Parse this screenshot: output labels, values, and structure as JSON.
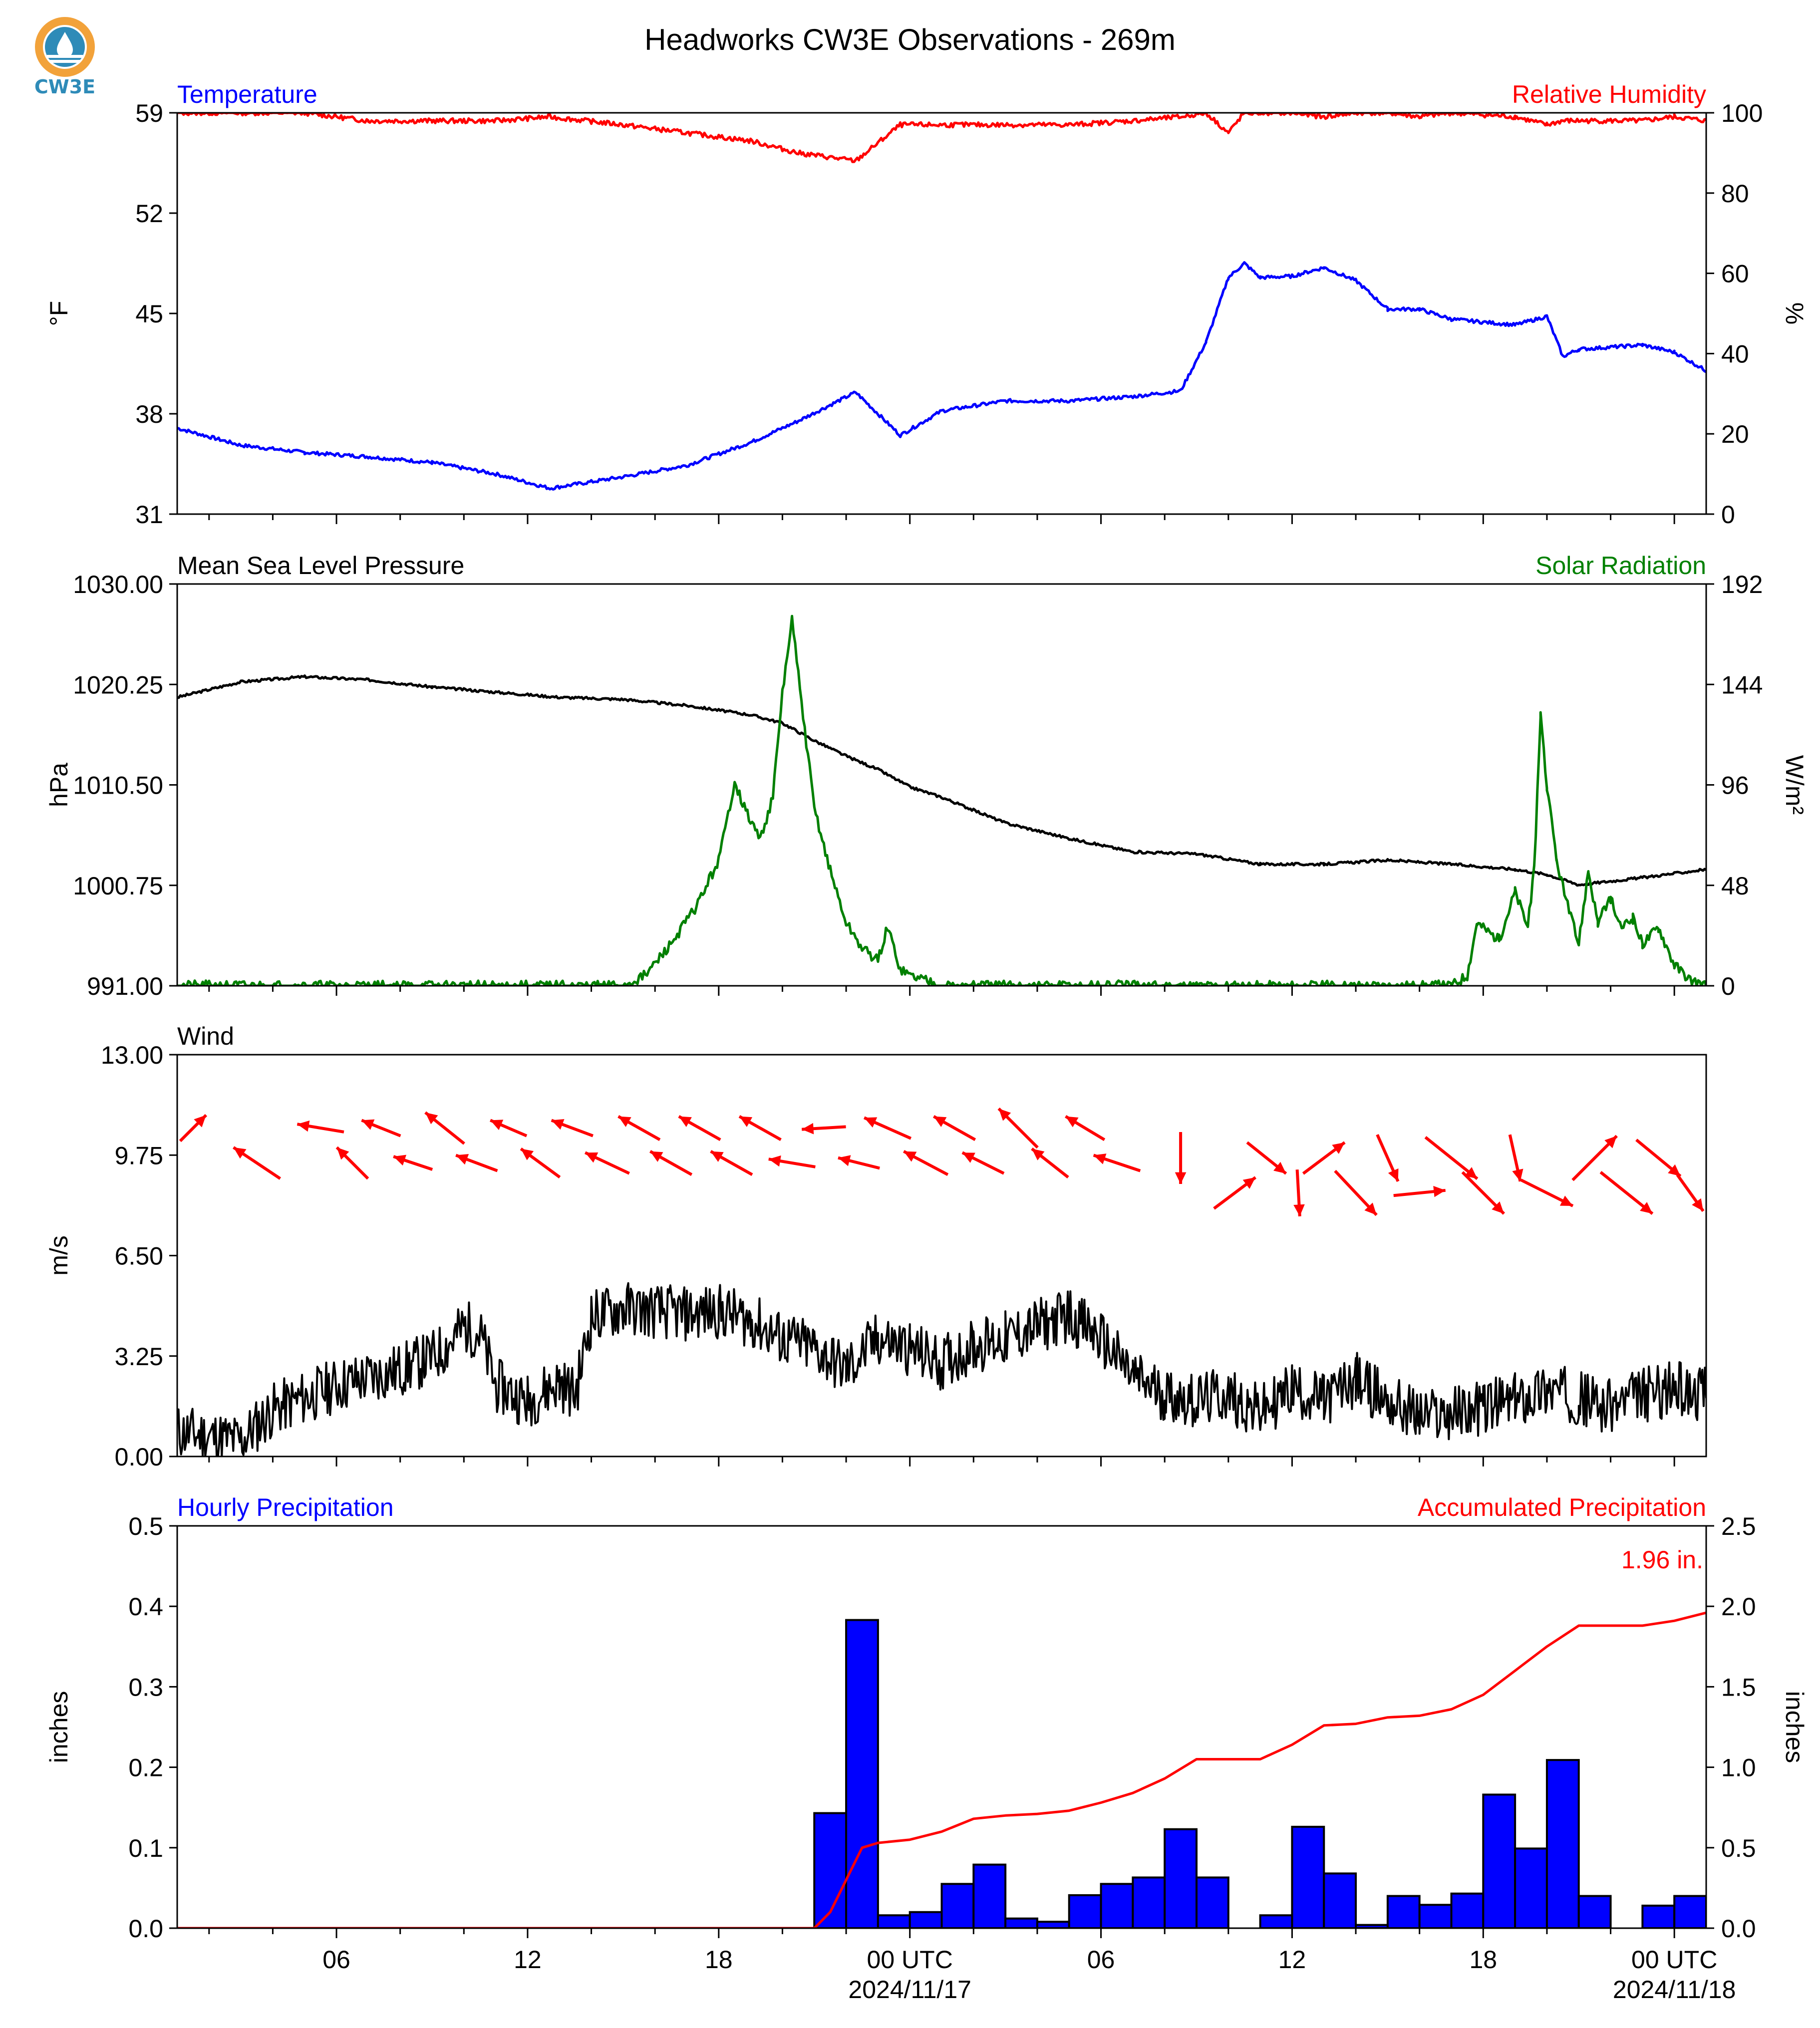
{
  "page_title": "Headworks CW3E Observations - 269m",
  "logo": {
    "text": "CW3E"
  },
  "colors": {
    "blue": "#0000ff",
    "red": "#ff0000",
    "green": "#008000",
    "black": "#000000"
  },
  "chart_data": [
    {
      "id": "temperature_rh",
      "type": "line",
      "title_left": "Temperature",
      "title_right": "Relative Humidity",
      "ylabel_left": "°F",
      "ylabel_right": "%",
      "ylim_left": [
        31,
        59
      ],
      "ylim_right": [
        0,
        100
      ],
      "yticks_left": [
        "31",
        "38",
        "45",
        "52",
        "59"
      ],
      "yticks_right": [
        "0",
        "20",
        "40",
        "60",
        "80",
        "100"
      ],
      "x_hours": [
        0,
        2,
        4,
        6,
        8,
        10,
        11.7,
        14,
        16,
        18,
        19.5,
        21.3,
        22.7,
        24,
        26,
        28,
        30,
        31.5,
        32.3,
        33,
        33.5,
        34,
        35,
        36,
        37,
        38,
        39,
        40,
        42,
        43,
        43.5,
        44,
        46,
        47,
        48
      ],
      "series": [
        {
          "name": "Temperature",
          "axis": "left",
          "color": "#0000ff",
          "values": [
            37.0,
            35.8,
            35.3,
            35.0,
            34.6,
            33.8,
            32.8,
            33.6,
            34.4,
            36.0,
            37.5,
            39.5,
            36.5,
            38.2,
            38.9,
            38.9,
            39.2,
            39.6,
            43.0,
            47.5,
            48.5,
            47.5,
            47.6,
            48.2,
            47.3,
            45.3,
            45.3,
            44.6,
            44.2,
            44.8,
            42.0,
            42.5,
            42.8,
            42.3,
            41.0
          ]
        },
        {
          "name": "Relative Humidity",
          "axis": "right",
          "color": "#ff0000",
          "values": [
            100,
            100,
            100,
            98,
            98,
            98,
            99,
            97,
            95,
            93,
            90,
            88,
            97,
            97,
            97,
            97,
            98,
            99,
            100,
            95,
            100,
            100,
            100,
            99,
            100,
            100,
            99,
            100,
            99,
            97,
            98,
            98,
            98,
            99,
            98
          ]
        }
      ]
    },
    {
      "id": "pressure_solar",
      "type": "line",
      "title_left": "Mean Sea Level Pressure",
      "title_right": "Solar Radiation",
      "ylabel_left": "hPa",
      "ylabel_right": "W/m²",
      "ylim_left": [
        991,
        1030
      ],
      "ylim_right": [
        0,
        192
      ],
      "yticks_left": [
        "991.00",
        "1000.75",
        "1010.50",
        "1020.25",
        "1030.00"
      ],
      "yticks_right": [
        "0",
        "48",
        "96",
        "144",
        "192"
      ],
      "series": [
        {
          "name": "Mean Sea Level Pressure",
          "axis": "left",
          "color": "#000000",
          "x_hours": [
            0,
            2,
            4,
            6,
            8,
            10,
            12,
            14,
            16,
            18,
            19,
            20,
            21,
            22,
            23,
            24,
            26,
            28,
            30,
            32,
            34,
            36,
            38,
            40,
            42,
            43,
            44,
            46,
            48
          ],
          "values": [
            1019.0,
            1020.5,
            1021.0,
            1020.7,
            1020.0,
            1019.5,
            1019.0,
            1018.8,
            1018.2,
            1017.3,
            1016.5,
            1014.8,
            1013.3,
            1012.0,
            1010.3,
            1009.3,
            1006.8,
            1005.3,
            1004.0,
            1003.8,
            1002.8,
            1002.8,
            1003.2,
            1002.8,
            1002.3,
            1001.8,
            1000.8,
            1001.5,
            1002.3
          ]
        },
        {
          "name": "Solar Radiation",
          "axis": "right",
          "color": "#008000",
          "x_hours": [
            0,
            14,
            14.7,
            15.5,
            16.3,
            17,
            17.3,
            17.5,
            17.8,
            18.3,
            18.7,
            19,
            19.3,
            19.6,
            20,
            20.5,
            21,
            21.5,
            22,
            22.3,
            22.7,
            23,
            23.5,
            24,
            40,
            40.5,
            40.8,
            41.5,
            42,
            42.4,
            42.6,
            42.8,
            43,
            43.3,
            43.7,
            44,
            44.3,
            44.6,
            45,
            45.3,
            45.7,
            46,
            46.5,
            47,
            47.5,
            48
          ],
          "values": [
            0,
            0,
            5,
            20,
            38,
            60,
            82,
            98,
            85,
            70,
            90,
            140,
            175,
            135,
            85,
            55,
            30,
            18,
            12,
            28,
            8,
            5,
            3,
            0,
            0,
            5,
            30,
            22,
            45,
            28,
            55,
            130,
            95,
            60,
            35,
            20,
            55,
            30,
            42,
            28,
            32,
            20,
            28,
            10,
            3,
            0
          ]
        }
      ]
    },
    {
      "id": "wind",
      "type": "line",
      "title_left": "Wind",
      "ylabel_left": "m/s",
      "ylim_left": [
        0,
        13
      ],
      "yticks_left": [
        "0.00",
        "3.25",
        "6.50",
        "9.75",
        "13.00"
      ],
      "series": [
        {
          "name": "Wind",
          "axis": "left",
          "color": "#000000",
          "x_hours": [
            0,
            2,
            3,
            5,
            7,
            8,
            8.5,
            9,
            9.5,
            10,
            11,
            12,
            12.5,
            13,
            14,
            16,
            17,
            18,
            19,
            20,
            21,
            22,
            23,
            24,
            25,
            26,
            27,
            28,
            29,
            30,
            31,
            32,
            33,
            34,
            35,
            36,
            37,
            38,
            39,
            40,
            41,
            42,
            43,
            44,
            45,
            46,
            47,
            48
          ],
          "values": [
            0.8,
            0.5,
            1.5,
            2.3,
            2.8,
            3.2,
            3.6,
            4.2,
            4.0,
            2.3,
            1.8,
            2.4,
            2.0,
            4.5,
            4.8,
            4.6,
            4.7,
            4.4,
            3.8,
            3.5,
            2.8,
            3.8,
            3.5,
            3.0,
            3.6,
            3.8,
            4.2,
            4.6,
            3.8,
            2.6,
            2.0,
            1.8,
            2.0,
            1.4,
            2.2,
            1.8,
            2.5,
            1.8,
            1.3,
            1.4,
            1.6,
            1.8,
            2.2,
            1.9,
            1.6,
            2.0,
            2.2,
            2.0
          ]
        }
      ],
      "wind_vectors": {
        "color": "#ff0000",
        "x_hours": [
          0.5,
          2.5,
          4.5,
          5.5,
          6.4,
          7.4,
          8.4,
          9.4,
          10.4,
          11.4,
          12.4,
          13.5,
          14.5,
          15.5,
          16.4,
          17.4,
          18.3,
          19.3,
          20.3,
          21.4,
          22.3,
          23.5,
          24.4,
          25.3,
          26.4,
          27.4,
          28.5,
          29.5,
          31.5,
          33.2,
          34.2,
          35.2,
          36.0,
          37.0,
          38.0,
          39.0,
          40.0,
          41.0,
          42.0,
          43.0,
          44.5,
          45.5,
          46.5,
          47.5
        ],
        "u": [
          1,
          -1.8,
          -1.8,
          -1.2,
          -1.5,
          -1.5,
          -1.5,
          -1.6,
          -1.4,
          -1.5,
          -1.6,
          -1.7,
          -1.6,
          -1.6,
          -1.6,
          -1.6,
          -1.6,
          -1.8,
          -1.7,
          -1.6,
          -1.8,
          -1.7,
          -1.6,
          -1.6,
          -1.5,
          -1.4,
          -1.5,
          -1.8,
          0,
          1.6,
          1.5,
          0.1,
          1.6,
          1.6,
          0.8,
          2,
          2,
          1.6,
          0.4,
          2,
          1.7,
          2,
          1.7,
          1
        ],
        "v": [
          1,
          1.2,
          0.3,
          1.2,
          0.6,
          0.5,
          1.2,
          0.6,
          0.6,
          1.1,
          0.6,
          0.8,
          0.9,
          0.9,
          0.9,
          0.9,
          0.9,
          0.3,
          -0.1,
          0.4,
          0.8,
          0.9,
          0.9,
          0.8,
          1.5,
          1.1,
          0.9,
          0.6,
          -2,
          1.2,
          -1.2,
          -1.8,
          1.2,
          -1.7,
          -1.8,
          0.2,
          -1.6,
          -1.6,
          -1.8,
          -1.0,
          1.7,
          -1.6,
          -1.4,
          -1.4
        ]
      }
    },
    {
      "id": "precipitation",
      "type": "bar",
      "title_left": "Hourly Precipitation",
      "title_right": "Accumulated Precipitation",
      "ylabel_left": "inches",
      "ylabel_right": "inches",
      "ylim_left": [
        0,
        0.5
      ],
      "ylim_right": [
        0,
        2.5
      ],
      "yticks_left": [
        "0.0",
        "0.1",
        "0.2",
        "0.3",
        "0.4",
        "0.5"
      ],
      "yticks_right": [
        "0.0",
        "0.5",
        "1.0",
        "1.5",
        "2.0",
        "2.5"
      ],
      "annotation": "1.96 in.",
      "bars": {
        "name": "Hourly Precipitation",
        "color": "#0000ff",
        "x_hours": [
          20,
          21,
          22,
          23,
          24,
          25,
          26,
          27,
          28,
          29,
          30,
          31,
          32,
          33,
          34,
          35,
          36,
          37,
          38,
          39,
          40,
          41,
          42,
          43,
          44,
          45,
          46,
          47
        ],
        "values": [
          0.143,
          0.383,
          0.016,
          0.02,
          0.055,
          0.079,
          0.012,
          0.008,
          0.041,
          0.055,
          0.063,
          0.123,
          0.063,
          0.0,
          0.016,
          0.126,
          0.068,
          0.004,
          0.04,
          0.029,
          0.043,
          0.166,
          0.099,
          0.209,
          0.04,
          0.0,
          0.028,
          0.04
        ]
      },
      "accumulated": {
        "name": "Accumulated Precipitation",
        "color": "#ff0000",
        "x_hours": [
          0,
          20,
          20.5,
          21,
          21.5,
          22,
          23,
          24,
          25,
          26,
          27,
          28,
          29,
          30,
          31,
          32,
          33,
          34,
          35,
          36,
          37,
          38,
          39,
          40,
          41,
          42,
          43,
          44,
          45,
          46,
          47,
          48
        ],
        "values": [
          0,
          0,
          0.1,
          0.3,
          0.5,
          0.53,
          0.55,
          0.6,
          0.68,
          0.7,
          0.71,
          0.73,
          0.78,
          0.84,
          0.93,
          1.05,
          1.05,
          1.05,
          1.14,
          1.26,
          1.27,
          1.31,
          1.32,
          1.36,
          1.45,
          1.6,
          1.75,
          1.88,
          1.88,
          1.88,
          1.91,
          1.96
        ]
      }
    }
  ],
  "x_axis": {
    "range_hours": [
      0,
      48
    ],
    "tick_labels": [
      {
        "hour": 5,
        "label": "06"
      },
      {
        "hour": 11,
        "label": "12"
      },
      {
        "hour": 17,
        "label": "18"
      },
      {
        "hour": 23,
        "label": "00 UTC",
        "date": "2024/11/17"
      },
      {
        "hour": 29,
        "label": "06"
      },
      {
        "hour": 35,
        "label": "12"
      },
      {
        "hour": 41,
        "label": "18"
      },
      {
        "hour": 47,
        "label": "00 UTC",
        "date": "2024/11/18"
      }
    ]
  }
}
